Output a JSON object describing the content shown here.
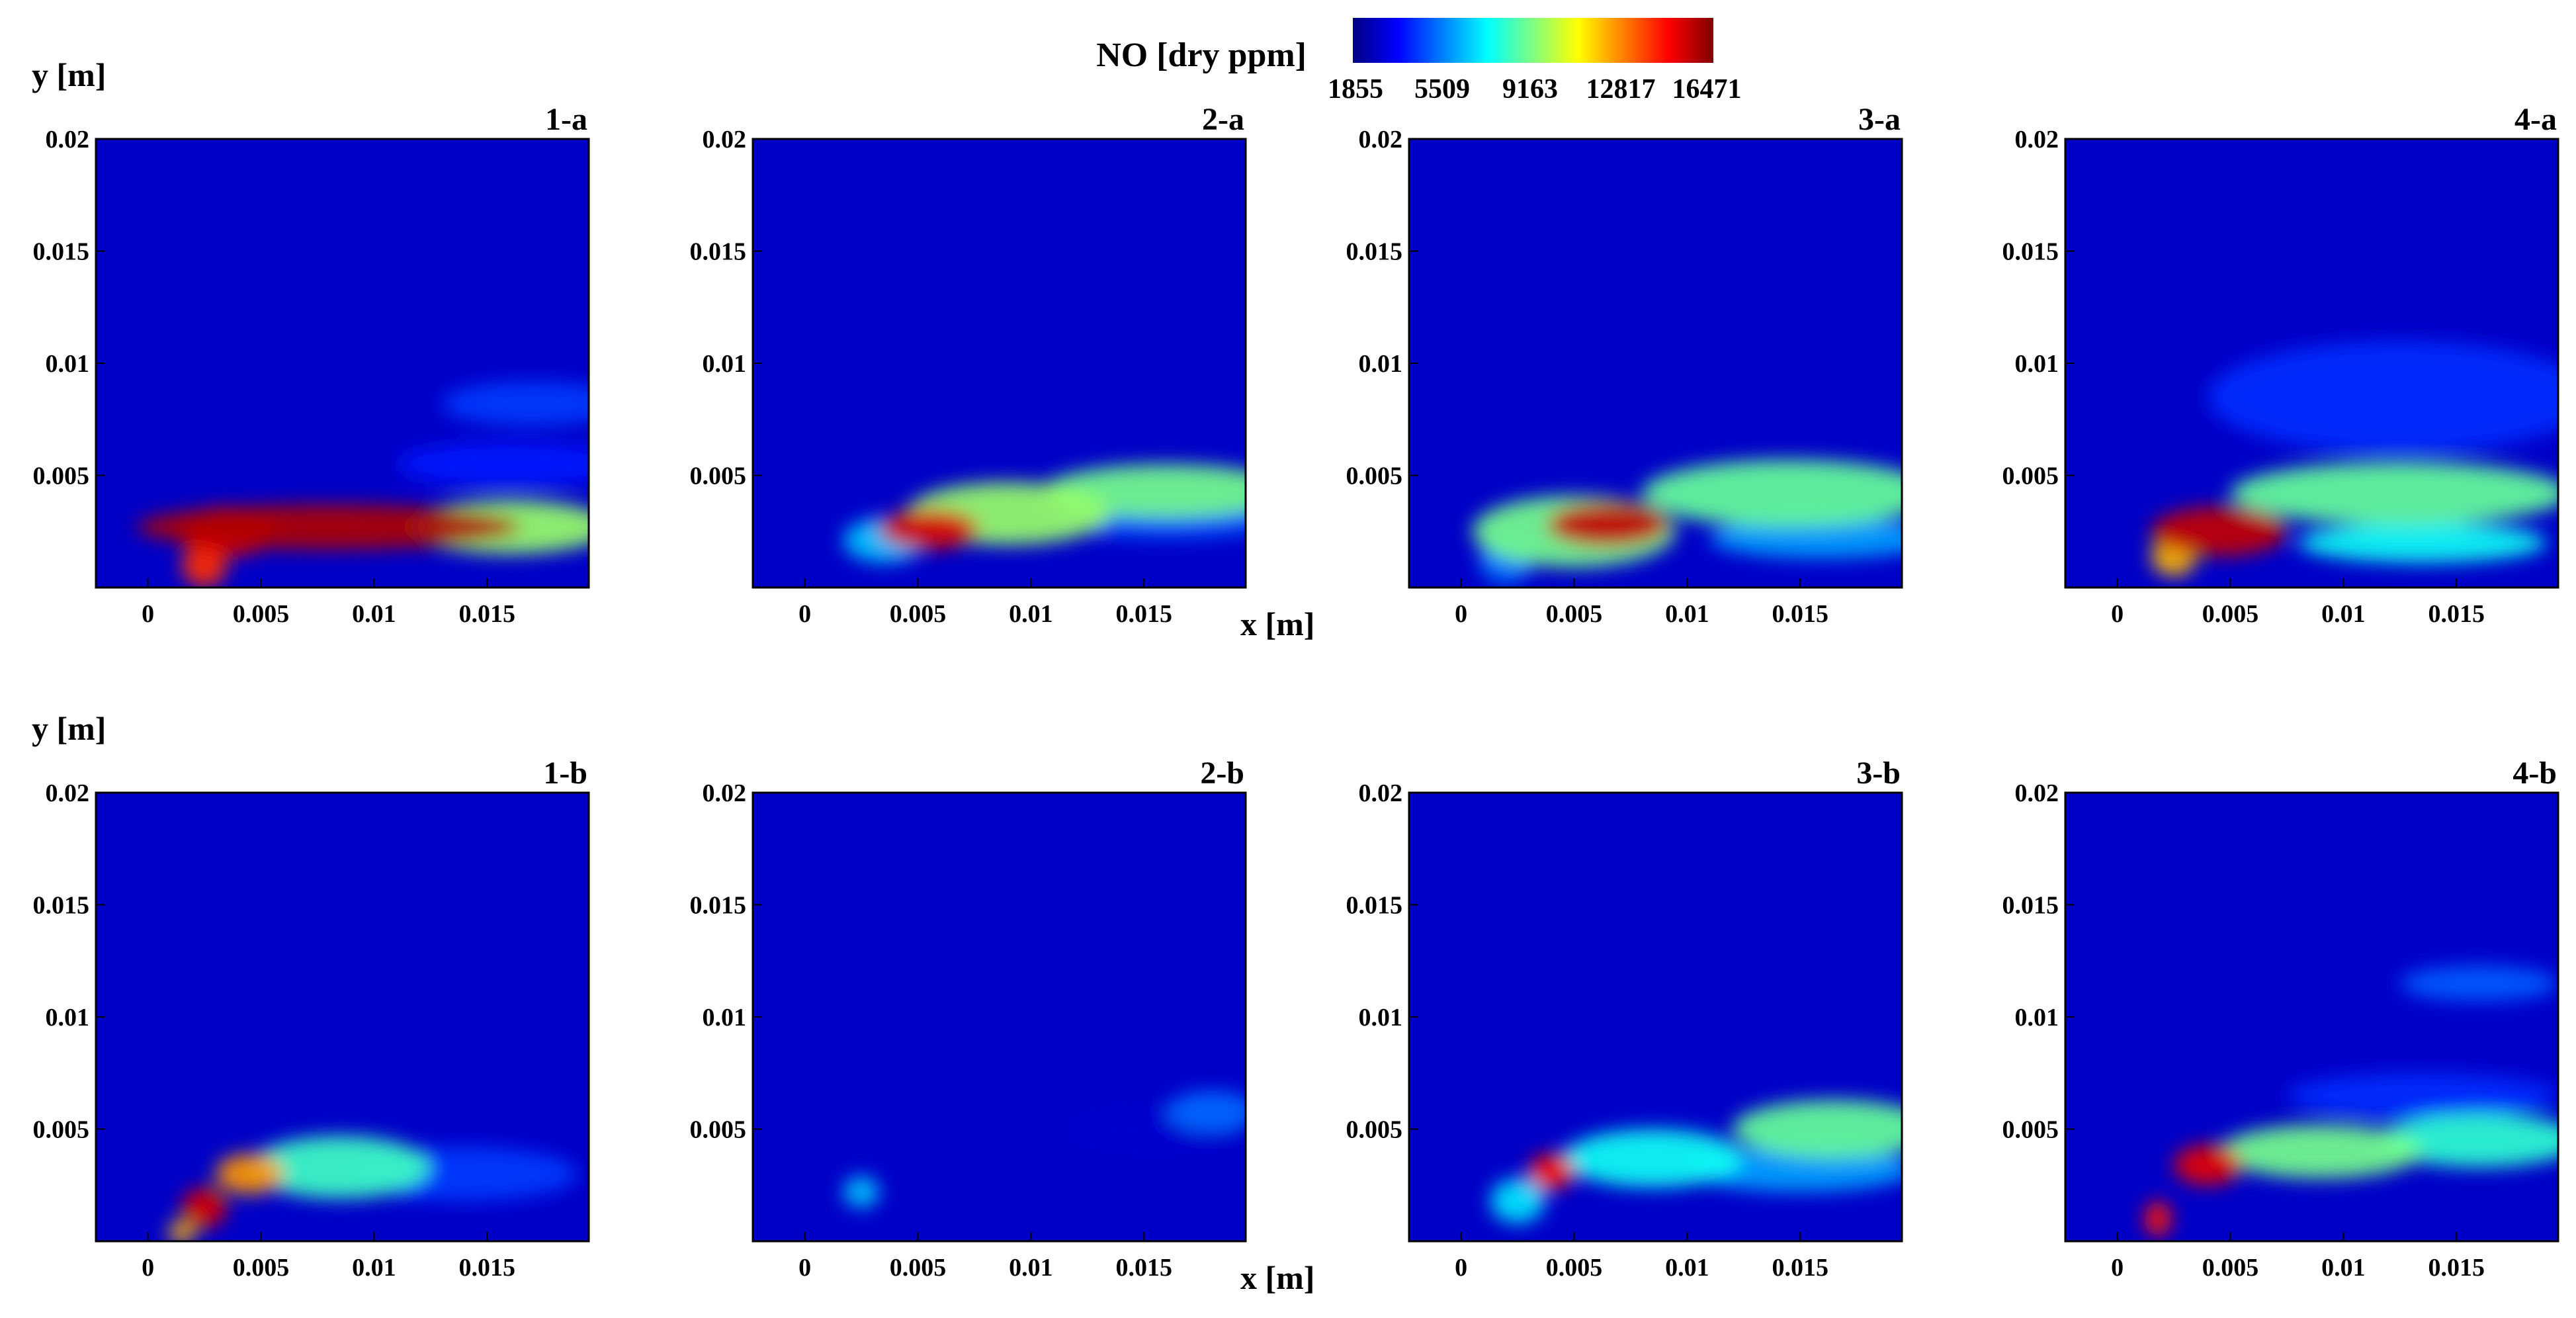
{
  "chart_data": {
    "type": "heatmap",
    "colorbar": {
      "title": "NO [dry ppm]",
      "ticks": [
        "1855",
        "5509",
        "9163",
        "12817",
        "16471"
      ],
      "min": 1855,
      "max": 16471,
      "colormap": "jet"
    },
    "xlabel": "x [m]",
    "ylabel": "y [m]",
    "xlim": [
      -0.0023,
      0.0195
    ],
    "ylim": [
      0,
      0.02
    ],
    "xticks": [
      "0",
      "0.005",
      "0.01",
      "0.015"
    ],
    "yticks": [
      "0.005",
      "0.01",
      "0.015",
      "0.02"
    ],
    "background_value": 1855,
    "panels": [
      {
        "label": "1-a",
        "features": [
          {
            "x": 0.008,
            "y": 0.0027,
            "sx": 0.0085,
            "sy": 0.001,
            "value": 15800
          },
          {
            "x": 0.0035,
            "y": 0.0025,
            "sx": 0.0022,
            "sy": 0.0011,
            "value": 15000
          },
          {
            "x": 0.016,
            "y": 0.0027,
            "sx": 0.0045,
            "sy": 0.0012,
            "value": 9500
          },
          {
            "x": 0.0025,
            "y": 0.001,
            "sx": 0.001,
            "sy": 0.001,
            "value": 14000
          },
          {
            "x": 0.017,
            "y": 0.0082,
            "sx": 0.004,
            "sy": 0.001,
            "value": 4500
          },
          {
            "x": 0.016,
            "y": 0.0055,
            "sx": 0.005,
            "sy": 0.001,
            "value": 4000
          }
        ]
      },
      {
        "label": "2-a",
        "features": [
          {
            "x": 0.0055,
            "y": 0.0026,
            "sx": 0.0022,
            "sy": 0.0009,
            "value": 15200
          },
          {
            "x": 0.009,
            "y": 0.0033,
            "sx": 0.0045,
            "sy": 0.0014,
            "value": 9500
          },
          {
            "x": 0.016,
            "y": 0.0043,
            "sx": 0.0055,
            "sy": 0.0012,
            "value": 9000
          },
          {
            "x": 0.0035,
            "y": 0.0021,
            "sx": 0.0018,
            "sy": 0.001,
            "value": 6500
          },
          {
            "x": 0.016,
            "y": 0.003,
            "sx": 0.005,
            "sy": 0.0008,
            "value": 5000
          }
        ]
      },
      {
        "label": "3-a",
        "features": [
          {
            "x": 0.0065,
            "y": 0.0028,
            "sx": 0.0027,
            "sy": 0.001,
            "value": 15500
          },
          {
            "x": 0.005,
            "y": 0.0025,
            "sx": 0.0045,
            "sy": 0.0016,
            "value": 9000
          },
          {
            "x": 0.0145,
            "y": 0.0042,
            "sx": 0.0065,
            "sy": 0.0015,
            "value": 8800
          },
          {
            "x": 0.002,
            "y": 0.0012,
            "sx": 0.0012,
            "sy": 0.001,
            "value": 5500
          },
          {
            "x": 0.016,
            "y": 0.0022,
            "sx": 0.005,
            "sy": 0.0009,
            "value": 6000
          }
        ]
      },
      {
        "label": "4-a",
        "features": [
          {
            "x": 0.0045,
            "y": 0.0025,
            "sx": 0.003,
            "sy": 0.0011,
            "value": 15500
          },
          {
            "x": 0.0025,
            "y": 0.0014,
            "sx": 0.001,
            "sy": 0.0009,
            "value": 12000
          },
          {
            "x": 0.0125,
            "y": 0.0042,
            "sx": 0.0075,
            "sy": 0.0014,
            "value": 8800
          },
          {
            "x": 0.0135,
            "y": 0.002,
            "sx": 0.0055,
            "sy": 0.0009,
            "value": 7500
          },
          {
            "x": 0.0125,
            "y": 0.0085,
            "sx": 0.0085,
            "sy": 0.0025,
            "value": 4300
          }
        ]
      },
      {
        "label": "1-b",
        "features": [
          {
            "x": 0.0025,
            "y": 0.0015,
            "sx": 0.001,
            "sy": 0.0009,
            "value": 15200
          },
          {
            "x": 0.0045,
            "y": 0.003,
            "sx": 0.0015,
            "sy": 0.0009,
            "value": 12500
          },
          {
            "x": 0.0085,
            "y": 0.0033,
            "sx": 0.004,
            "sy": 0.0014,
            "value": 8200
          },
          {
            "x": 0.014,
            "y": 0.003,
            "sx": 0.005,
            "sy": 0.0012,
            "value": 4500
          },
          {
            "x": 0.0015,
            "y": 0.0004,
            "sx": 0.0006,
            "sy": 0.0005,
            "value": 12000
          }
        ]
      },
      {
        "label": "2-b",
        "features": [
          {
            "x": 0.0025,
            "y": 0.0022,
            "sx": 0.0008,
            "sy": 0.0007,
            "value": 6500
          },
          {
            "x": 0.018,
            "y": 0.0058,
            "sx": 0.002,
            "sy": 0.0009,
            "value": 5200
          },
          {
            "x": 0.0155,
            "y": 0.005,
            "sx": 0.004,
            "sy": 0.001,
            "value": 3000
          }
        ]
      },
      {
        "label": "3-b",
        "features": [
          {
            "x": 0.004,
            "y": 0.0031,
            "sx": 0.001,
            "sy": 0.0008,
            "value": 14500
          },
          {
            "x": 0.0025,
            "y": 0.0018,
            "sx": 0.0012,
            "sy": 0.001,
            "value": 7000
          },
          {
            "x": 0.0085,
            "y": 0.0037,
            "sx": 0.004,
            "sy": 0.0013,
            "value": 7500
          },
          {
            "x": 0.0165,
            "y": 0.005,
            "sx": 0.0045,
            "sy": 0.0013,
            "value": 8800
          },
          {
            "x": 0.015,
            "y": 0.0032,
            "sx": 0.005,
            "sy": 0.001,
            "value": 6000
          }
        ]
      },
      {
        "label": "4-b",
        "features": [
          {
            "x": 0.004,
            "y": 0.0034,
            "sx": 0.0015,
            "sy": 0.0009,
            "value": 15000
          },
          {
            "x": 0.0018,
            "y": 0.001,
            "sx": 0.0006,
            "sy": 0.0008,
            "value": 14500
          },
          {
            "x": 0.009,
            "y": 0.004,
            "sx": 0.0045,
            "sy": 0.0012,
            "value": 9000
          },
          {
            "x": 0.016,
            "y": 0.0045,
            "sx": 0.0045,
            "sy": 0.0012,
            "value": 8000
          },
          {
            "x": 0.016,
            "y": 0.0115,
            "sx": 0.0035,
            "sy": 0.0008,
            "value": 5000
          },
          {
            "x": 0.0135,
            "y": 0.0065,
            "sx": 0.006,
            "sy": 0.001,
            "value": 4300
          }
        ]
      }
    ]
  }
}
